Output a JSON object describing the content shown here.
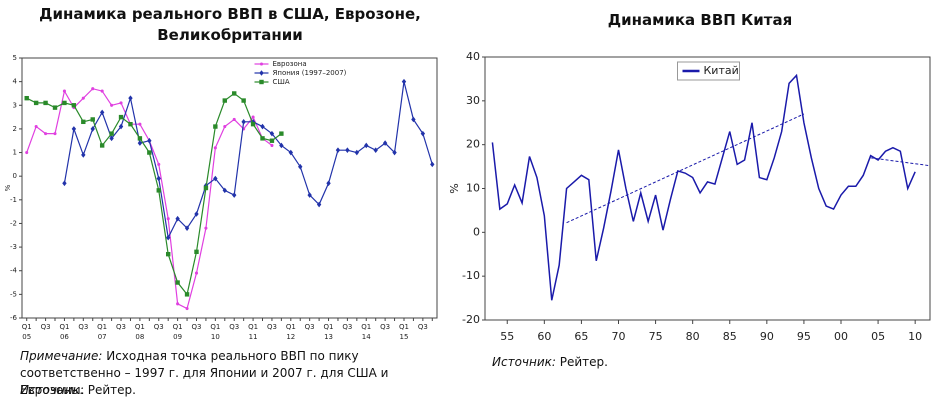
{
  "chart_data": [
    {
      "type": "line",
      "title": "Динамика реального ВВП в США, Еврозоне, Великобритании",
      "ylabel": "%",
      "categories": [
        "Q1",
        null,
        "Q3",
        null,
        "Q1",
        null,
        "Q3",
        null,
        "Q1",
        null,
        "Q3",
        null,
        "Q1",
        null,
        "Q3",
        null,
        "Q1",
        null,
        "Q3",
        null,
        "Q1",
        null,
        "Q3",
        null,
        "Q1",
        null,
        "Q3",
        null,
        "Q1",
        null,
        "Q3",
        null,
        "Q1",
        null,
        "Q3",
        null,
        "Q1",
        null,
        "Q3",
        null,
        "Q1",
        null,
        "Q3",
        null
      ],
      "years": [
        "05",
        "06",
        "07",
        "08",
        "09",
        "10",
        "11",
        "12",
        "13",
        "14",
        "15"
      ],
      "ylim": [
        -6,
        5
      ],
      "yticks": [
        5,
        4,
        3,
        2,
        1,
        0,
        -1,
        -2,
        -3,
        -4,
        -5,
        -6
      ],
      "legend": "upper center",
      "series": [
        {
          "name": "Еврозона",
          "color": "#e040e0",
          "marker": "dot",
          "values": [
            1.0,
            2.1,
            1.8,
            1.8,
            3.6,
            2.9,
            3.3,
            3.7,
            3.6,
            3.0,
            3.1,
            2.2,
            2.2,
            1.5,
            0.5,
            -1.8,
            -5.4,
            -5.6,
            -4.1,
            -2.2,
            1.2,
            2.1,
            2.4,
            2.0,
            2.5,
            1.6,
            1.3,
            null,
            null,
            null,
            null,
            null,
            null,
            null,
            null,
            null,
            null,
            null,
            null,
            null,
            null,
            null,
            null,
            null
          ]
        },
        {
          "name": "Япония (1997–2007)",
          "color": "#2233aa",
          "marker": "diamond",
          "values": [
            null,
            null,
            null,
            null,
            -0.3,
            2.0,
            0.9,
            2.0,
            2.7,
            1.6,
            2.1,
            3.3,
            1.4,
            1.5,
            -0.1,
            -2.6,
            -1.8,
            -2.2,
            -1.6,
            -0.4,
            -0.1,
            -0.6,
            -0.8,
            2.3,
            2.3,
            2.1,
            1.8,
            1.3,
            1.0,
            0.4,
            -0.8,
            -1.2,
            -0.3,
            1.1,
            1.1,
            1.0,
            1.3,
            1.1,
            1.4,
            1.0,
            4.0,
            2.4,
            1.8,
            0.5
          ]
        },
        {
          "name": "США",
          "color": "#2a8a2a",
          "marker": "square",
          "values": [
            3.3,
            3.1,
            3.1,
            2.9,
            3.1,
            3.0,
            2.3,
            2.4,
            1.3,
            1.8,
            2.5,
            2.2,
            1.6,
            1.0,
            -0.6,
            -3.3,
            -4.5,
            -5.0,
            -3.2,
            -0.5,
            2.1,
            3.2,
            3.5,
            3.2,
            2.2,
            1.6,
            1.5,
            1.8,
            null,
            null,
            null,
            null,
            null,
            null,
            null,
            null,
            null,
            null,
            null,
            null,
            null,
            null,
            null,
            null
          ]
        }
      ],
      "note": {
        "label": "Примечание:",
        "text": "Исходная точка реального ВВП по пику соответственно – 1997 г. для Японии и 2007 г. для США и Еврозоны."
      },
      "source": {
        "label": "Источник:",
        "text": "Рейтер."
      }
    },
    {
      "type": "line",
      "title": "Динамика ВВП Китая",
      "ylabel": "%",
      "x": [
        1953,
        1954,
        1955,
        1956,
        1957,
        1958,
        1959,
        1960,
        1961,
        1962,
        1963,
        1964,
        1965,
        1966,
        1967,
        1968,
        1969,
        1970,
        1971,
        1972,
        1973,
        1974,
        1975,
        1976,
        1977,
        1978,
        1979,
        1980,
        1981,
        1982,
        1983,
        1984,
        1985,
        1986,
        1987,
        1988,
        1989,
        1990,
        1991,
        1992,
        1993,
        1994,
        1995,
        1996,
        1997,
        1998,
        1999,
        2000,
        2001,
        2002,
        2003,
        2004,
        2005,
        2006,
        2007,
        2008,
        2009,
        2010
      ],
      "xlim": [
        1952,
        2012
      ],
      "xticks": [
        {
          "value": 1955,
          "label": "55"
        },
        {
          "value": 1960,
          "label": "60"
        },
        {
          "value": 1965,
          "label": "65"
        },
        {
          "value": 1970,
          "label": "70"
        },
        {
          "value": 1975,
          "label": "75"
        },
        {
          "value": 1980,
          "label": "80"
        },
        {
          "value": 1985,
          "label": "85"
        },
        {
          "value": 1990,
          "label": "90"
        },
        {
          "value": 1995,
          "label": "95"
        },
        {
          "value": 2000,
          "label": "00"
        },
        {
          "value": 2005,
          "label": "05"
        },
        {
          "value": 2010,
          "label": "10"
        }
      ],
      "ylim": [
        -20,
        40
      ],
      "yticks": [
        -20,
        -10,
        0,
        10,
        20,
        30,
        40
      ],
      "legend": "upper center",
      "series": [
        {
          "name": "Китай",
          "color": "#1a1aaa",
          "values": [
            20.5,
            5.3,
            6.5,
            10.8,
            6.7,
            17.3,
            12.5,
            3.8,
            -15.5,
            -7.5,
            10.0,
            11.5,
            13.0,
            12.0,
            -6.5,
            1.0,
            9.5,
            18.8,
            10.0,
            2.5,
            9.0,
            2.5,
            8.5,
            0.5,
            7.5,
            14.0,
            13.5,
            12.5,
            9.0,
            11.5,
            11.0,
            17.0,
            23.0,
            15.5,
            16.5,
            25.0,
            12.5,
            12.0,
            17.0,
            23.0,
            34.0,
            35.8,
            25.0,
            17.0,
            10.0,
            6.0,
            5.3,
            8.5,
            10.5,
            10.5,
            13.0,
            17.5,
            16.5,
            18.5,
            19.3,
            18.5,
            10.0,
            13.8
          ]
        }
      ],
      "trend_lines": [
        {
          "color": "#1a1aaa",
          "x": [
            1963,
            1995
          ],
          "values": [
            2.2,
            27.0
          ]
        },
        {
          "color": "#1a1aaa",
          "x": [
            2004,
            2012
          ],
          "values": [
            17.0,
            15.2
          ]
        }
      ],
      "source": {
        "label": "Источник:",
        "text": "Рейтер."
      }
    }
  ]
}
